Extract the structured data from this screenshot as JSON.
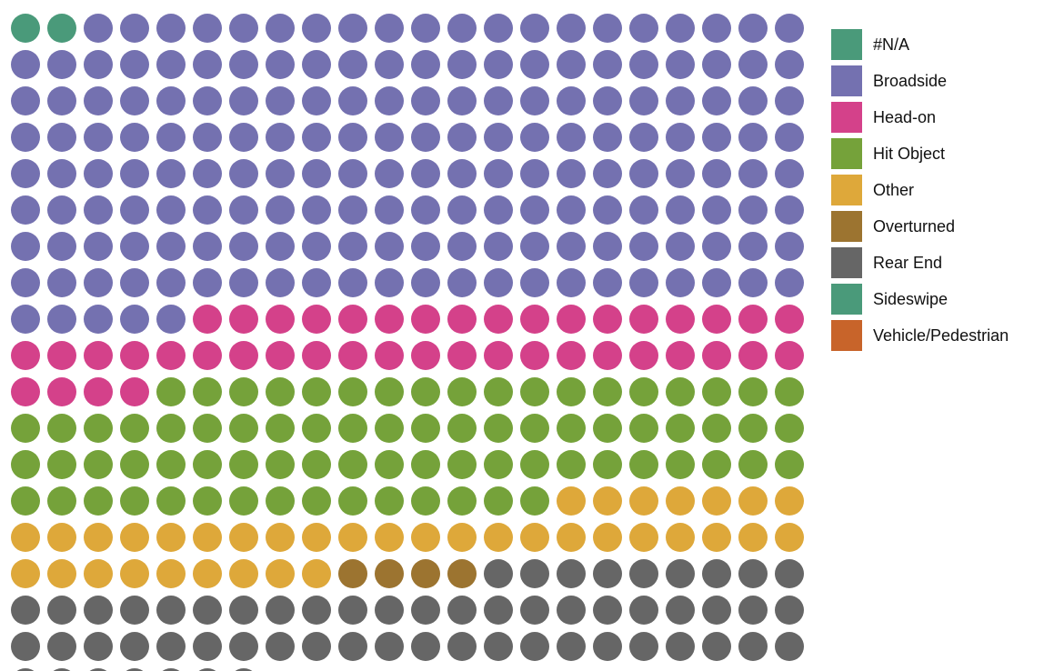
{
  "chart_data": {
    "type": "waffle",
    "title": "",
    "columns": 22,
    "categories": [
      "#N/A",
      "Broadside",
      "Head-on",
      "Hit Object",
      "Other",
      "Overturned",
      "Rear End",
      "Sideswipe",
      "Vehicle/Pedestrian"
    ],
    "values": [
      2,
      179,
      43,
      77,
      38,
      4,
      60,
      0,
      0
    ],
    "colors": [
      "#4a9a7a",
      "#7471b0",
      "#d4418a",
      "#75a23a",
      "#dea83a",
      "#9c7430",
      "#666666",
      "#4a9a7a",
      "#c8642a"
    ],
    "legend_position": "right"
  }
}
